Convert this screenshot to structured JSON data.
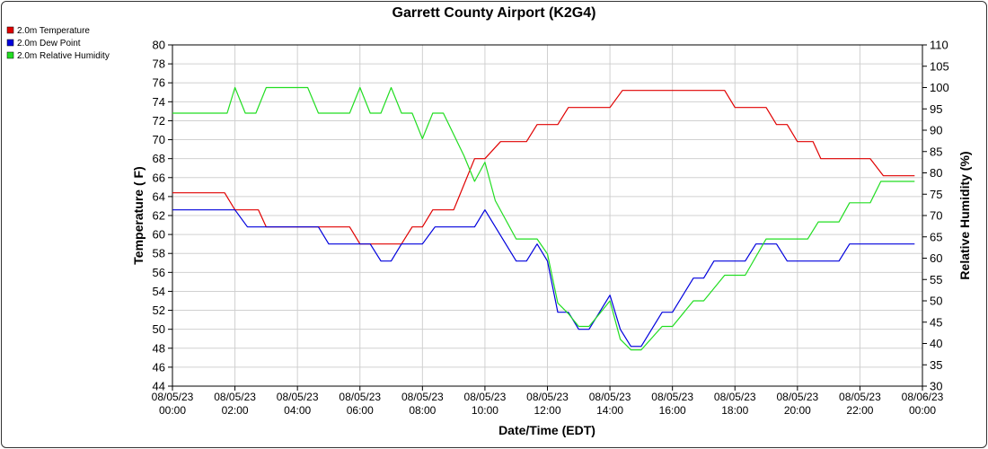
{
  "chart_data": {
    "type": "line",
    "title": "Garrett County Airport (K2G4)",
    "xlabel": "Date/Time (EDT)",
    "ylabel_left": "Temperature ( F)",
    "ylabel_right": "Relative Humidity (%)",
    "ylim_left": [
      44,
      80
    ],
    "ylim_right": [
      30,
      110
    ],
    "xlim_hours": [
      0,
      24
    ],
    "grid": true,
    "legend_position": "top-left",
    "x_ticks": [
      {
        "date": "08/05/23",
        "time": "00:00",
        "hour": 0
      },
      {
        "date": "08/05/23",
        "time": "02:00",
        "hour": 2
      },
      {
        "date": "08/05/23",
        "time": "04:00",
        "hour": 4
      },
      {
        "date": "08/05/23",
        "time": "06:00",
        "hour": 6
      },
      {
        "date": "08/05/23",
        "time": "08:00",
        "hour": 8
      },
      {
        "date": "08/05/23",
        "time": "10:00",
        "hour": 10
      },
      {
        "date": "08/05/23",
        "time": "12:00",
        "hour": 12
      },
      {
        "date": "08/05/23",
        "time": "14:00",
        "hour": 14
      },
      {
        "date": "08/05/23",
        "time": "16:00",
        "hour": 16
      },
      {
        "date": "08/05/23",
        "time": "18:00",
        "hour": 18
      },
      {
        "date": "08/05/23",
        "time": "20:00",
        "hour": 20
      },
      {
        "date": "08/05/23",
        "time": "22:00",
        "hour": 22
      },
      {
        "date": "08/06/23",
        "time": "00:00",
        "hour": 24
      }
    ],
    "y_ticks_left": [
      44,
      46,
      48,
      50,
      52,
      54,
      56,
      58,
      60,
      62,
      64,
      66,
      68,
      70,
      72,
      74,
      76,
      78,
      80
    ],
    "y_ticks_right": [
      30,
      35,
      40,
      45,
      50,
      55,
      60,
      65,
      70,
      75,
      80,
      85,
      90,
      95,
      100,
      105,
      110
    ],
    "series": [
      {
        "name": "2.0m Temperature",
        "color": "#e00000",
        "axis": "left",
        "points": [
          [
            0,
            64.4
          ],
          [
            1.67,
            64.4
          ],
          [
            2.0,
            62.6
          ],
          [
            2.75,
            62.6
          ],
          [
            3.0,
            60.8
          ],
          [
            5.67,
            60.8
          ],
          [
            6.0,
            59.0
          ],
          [
            7.33,
            59.0
          ],
          [
            7.67,
            60.8
          ],
          [
            8.0,
            60.8
          ],
          [
            8.33,
            62.6
          ],
          [
            9.0,
            62.6
          ],
          [
            9.67,
            68.0
          ],
          [
            10.0,
            68.0
          ],
          [
            10.5,
            69.8
          ],
          [
            11.33,
            69.8
          ],
          [
            11.67,
            71.6
          ],
          [
            12.33,
            71.6
          ],
          [
            12.67,
            73.4
          ],
          [
            14.0,
            73.4
          ],
          [
            14.4,
            75.2
          ],
          [
            17.67,
            75.2
          ],
          [
            18.0,
            73.4
          ],
          [
            19.0,
            73.4
          ],
          [
            19.33,
            71.6
          ],
          [
            19.67,
            71.6
          ],
          [
            20.0,
            69.8
          ],
          [
            20.5,
            69.8
          ],
          [
            20.75,
            68.0
          ],
          [
            22.33,
            68.0
          ],
          [
            22.75,
            66.2
          ],
          [
            23.75,
            66.2
          ]
        ]
      },
      {
        "name": "2.0m Dew Point",
        "color": "#0000dd",
        "axis": "left",
        "points": [
          [
            0,
            62.6
          ],
          [
            2.0,
            62.6
          ],
          [
            2.4,
            60.8
          ],
          [
            4.67,
            60.8
          ],
          [
            5.0,
            59.0
          ],
          [
            6.33,
            59.0
          ],
          [
            6.67,
            57.2
          ],
          [
            7.0,
            57.2
          ],
          [
            7.33,
            59.0
          ],
          [
            8.0,
            59.0
          ],
          [
            8.4,
            60.8
          ],
          [
            9.67,
            60.8
          ],
          [
            10.0,
            62.6
          ],
          [
            11.0,
            57.2
          ],
          [
            11.33,
            57.2
          ],
          [
            11.67,
            59.0
          ],
          [
            12.0,
            57.2
          ],
          [
            12.33,
            51.8
          ],
          [
            12.67,
            51.8
          ],
          [
            13.0,
            50.0
          ],
          [
            13.33,
            50.0
          ],
          [
            14.0,
            53.6
          ],
          [
            14.33,
            50.0
          ],
          [
            14.67,
            48.2
          ],
          [
            15.0,
            48.2
          ],
          [
            15.67,
            51.8
          ],
          [
            16.0,
            51.8
          ],
          [
            16.67,
            55.4
          ],
          [
            17.0,
            55.4
          ],
          [
            17.33,
            57.2
          ],
          [
            18.33,
            57.2
          ],
          [
            18.67,
            59.0
          ],
          [
            19.33,
            59.0
          ],
          [
            19.67,
            57.2
          ],
          [
            21.33,
            57.2
          ],
          [
            21.67,
            59.0
          ],
          [
            23.75,
            59.0
          ]
        ]
      },
      {
        "name": "2.0m Relative Humidity",
        "color": "#22dd22",
        "axis": "right",
        "points": [
          [
            0,
            94
          ],
          [
            1.75,
            94
          ],
          [
            2.0,
            100
          ],
          [
            2.33,
            94
          ],
          [
            2.67,
            94
          ],
          [
            3.0,
            100
          ],
          [
            4.33,
            100
          ],
          [
            4.67,
            94
          ],
          [
            5.67,
            94
          ],
          [
            6.0,
            100
          ],
          [
            6.33,
            94
          ],
          [
            6.67,
            94
          ],
          [
            7.0,
            100
          ],
          [
            7.33,
            94
          ],
          [
            7.67,
            94
          ],
          [
            8.0,
            88
          ],
          [
            8.33,
            94
          ],
          [
            8.67,
            94
          ],
          [
            9.33,
            84
          ],
          [
            9.67,
            78
          ],
          [
            10.0,
            82.5
          ],
          [
            10.33,
            73.5
          ],
          [
            11.0,
            64.5
          ],
          [
            11.67,
            64.5
          ],
          [
            12.0,
            61
          ],
          [
            12.33,
            49.5
          ],
          [
            12.67,
            47
          ],
          [
            13.0,
            44
          ],
          [
            13.33,
            44
          ],
          [
            13.67,
            47
          ],
          [
            14.0,
            50
          ],
          [
            14.33,
            41
          ],
          [
            14.67,
            38.5
          ],
          [
            15.0,
            38.5
          ],
          [
            15.67,
            44
          ],
          [
            16.0,
            44
          ],
          [
            16.67,
            50
          ],
          [
            17.0,
            50
          ],
          [
            17.67,
            56
          ],
          [
            18.33,
            56
          ],
          [
            19.0,
            64.5
          ],
          [
            20.33,
            64.5
          ],
          [
            20.67,
            68.5
          ],
          [
            21.33,
            68.5
          ],
          [
            21.67,
            73
          ],
          [
            22.33,
            73
          ],
          [
            22.67,
            78
          ],
          [
            23.75,
            78
          ]
        ]
      }
    ]
  }
}
